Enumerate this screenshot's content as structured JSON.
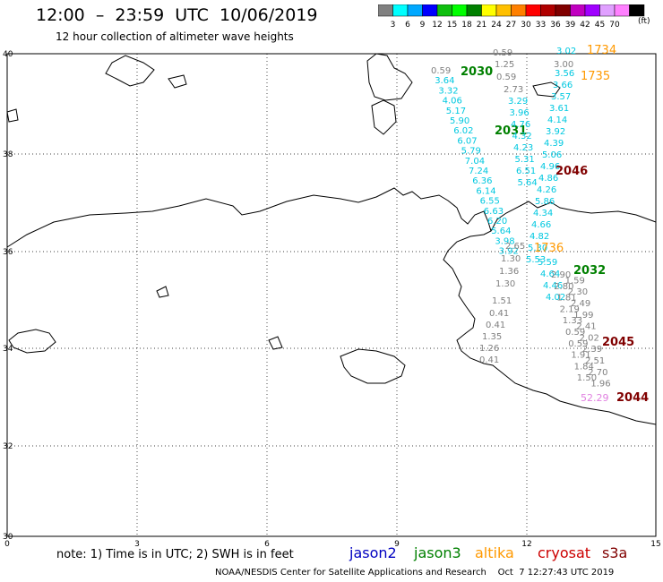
{
  "header": {
    "title": "12:00  –  23:59  UTC  10/06/2019",
    "subtitle": "12 hour collection of altimeter wave heights"
  },
  "scale": {
    "colors": [
      "#808080",
      "#00ffff",
      "#00a8ff",
      "#0000ff",
      "#0fbf0f",
      "#00ff00",
      "#008000",
      "#ffff00",
      "#ffc000",
      "#ff8000",
      "#ff0000",
      "#b00000",
      "#800000",
      "#c000c0",
      "#a000ff",
      "#e0a0ff",
      "#ff80ff",
      "#000000"
    ],
    "labels": [
      "3",
      "6",
      "9",
      "12",
      "15",
      "18",
      "21",
      "24",
      "27",
      "30",
      "33",
      "36",
      "39",
      "42",
      "45",
      "70",
      "(ft)"
    ]
  },
  "axes": {
    "lat_labels": [
      "40",
      "38",
      "36",
      "34",
      "32",
      "30"
    ],
    "lon_labels": [
      "0",
      "3",
      "6",
      "9",
      "12",
      "15"
    ]
  },
  "tracks": {
    "jason3_2030": {
      "label": "2030",
      "color": "#008000",
      "values": [
        "0.59",
        "3.64",
        "3.32",
        "4.06",
        "5.17",
        "5.90",
        "6.02",
        "6.07",
        "5.79",
        "7.04",
        "7.24",
        "6.36",
        "6.14",
        "6.55",
        "6.63",
        "6.20",
        "5.64",
        "3.98",
        "3.92"
      ]
    },
    "jason3_2031": {
      "label": "2031",
      "color": "#008000"
    },
    "cyan_right": {
      "values": [
        "3.02",
        "3.56",
        "3.66",
        "3.57",
        "3.61",
        "4.14",
        "3.92",
        "4.39",
        "5.06",
        "4.96",
        "4.86",
        "4.26",
        "5.86",
        "4.34",
        "4.66",
        "4.82",
        "5.30",
        "5.53"
      ]
    },
    "gray_mid": {
      "values": [
        "0.59",
        "1.25",
        "0.59",
        "2.73",
        "3.00",
        "2.65",
        "1.30",
        "1.36",
        "1.30",
        "1.51",
        "0.41",
        "0.41",
        "1.35",
        "1.26",
        "0.41"
      ]
    },
    "cyan_mid": {
      "values": [
        "3.29",
        "3.96",
        "4.76",
        "4.32",
        "4.23",
        "5.31",
        "6.51",
        "5.64"
      ]
    },
    "right_lower": {
      "values": [
        "2.90",
        "1.59",
        "2.80",
        "2.30",
        "1.81",
        "2.49",
        "2.19",
        "1.99",
        "1.33",
        "2.41",
        "0.59",
        "2.02",
        "0.59",
        "2.39",
        "1.91",
        "2.51",
        "1.84",
        "2.70",
        "1.50",
        "1.96"
      ]
    },
    "orange": {
      "values": [
        "1734",
        "1735",
        "1736"
      ]
    },
    "magenta": {
      "values": [
        "52.29"
      ]
    },
    "dark_2046": {
      "label": "2046"
    },
    "green_2032": {
      "label": "2032"
    },
    "dark_2045": {
      "label": "2045"
    },
    "dark_2044": {
      "label": "2044"
    },
    "cyan_lower": {
      "values": [
        "5.59",
        "4.64",
        "4.46",
        "4.02"
      ]
    }
  },
  "footer": {
    "note": "note:  1)  Time is in UTC;  2)  SWH is in feet",
    "sats": [
      {
        "name": "jason2",
        "color": "#0000c0"
      },
      {
        "name": "jason3",
        "color": "#008000"
      },
      {
        "name": "altika",
        "color": "#ff9900"
      },
      {
        "name": "cryosat",
        "color": "#cc0000"
      },
      {
        "name": "s3a",
        "color": "#800000"
      }
    ],
    "credit": "NOAA/NESDIS Center for Satellite Applications and Research    Oct  7 12:27:43 UTC 2019"
  }
}
